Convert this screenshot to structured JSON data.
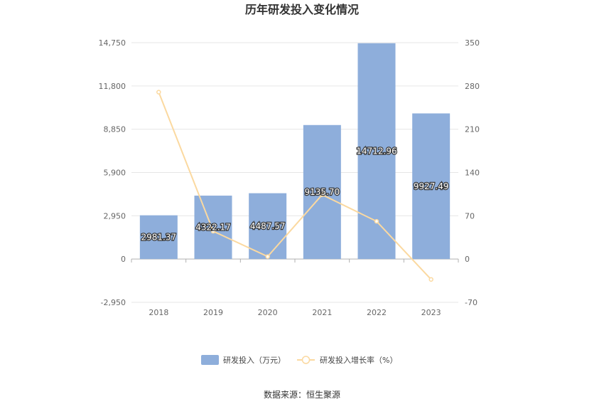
{
  "chart_data": {
    "type": "bar",
    "title": "历年研发投入变化情况",
    "categories": [
      "2018",
      "2019",
      "2020",
      "2021",
      "2022",
      "2023"
    ],
    "series": [
      {
        "name": "研发投入（万元）",
        "type": "bar",
        "axis": "left",
        "values": [
          2981.37,
          4322.17,
          4487.57,
          9135.7,
          14712.96,
          9927.49
        ],
        "labels": [
          "2981.37",
          "4322.17",
          "4487.57",
          "9135.70",
          "14712.96",
          "9927.49"
        ],
        "color": "#8eaedb"
      },
      {
        "name": "研发投入增长率（%）",
        "type": "line",
        "axis": "right",
        "values": [
          270,
          45,
          4,
          104,
          61,
          -33
        ],
        "color": "#fbd9a0"
      }
    ],
    "y_left": {
      "min": -2950,
      "max": 14750,
      "ticks": [
        "-2,950",
        "0",
        "2,950",
        "5,900",
        "8,850",
        "11,800",
        "14,750"
      ]
    },
    "y_right": {
      "min": -70,
      "max": 350,
      "ticks": [
        "-70",
        "0",
        "70",
        "140",
        "210",
        "280",
        "350"
      ]
    },
    "grid": true,
    "legend_position": "bottom"
  },
  "source_text": "数据来源：恒生聚源"
}
